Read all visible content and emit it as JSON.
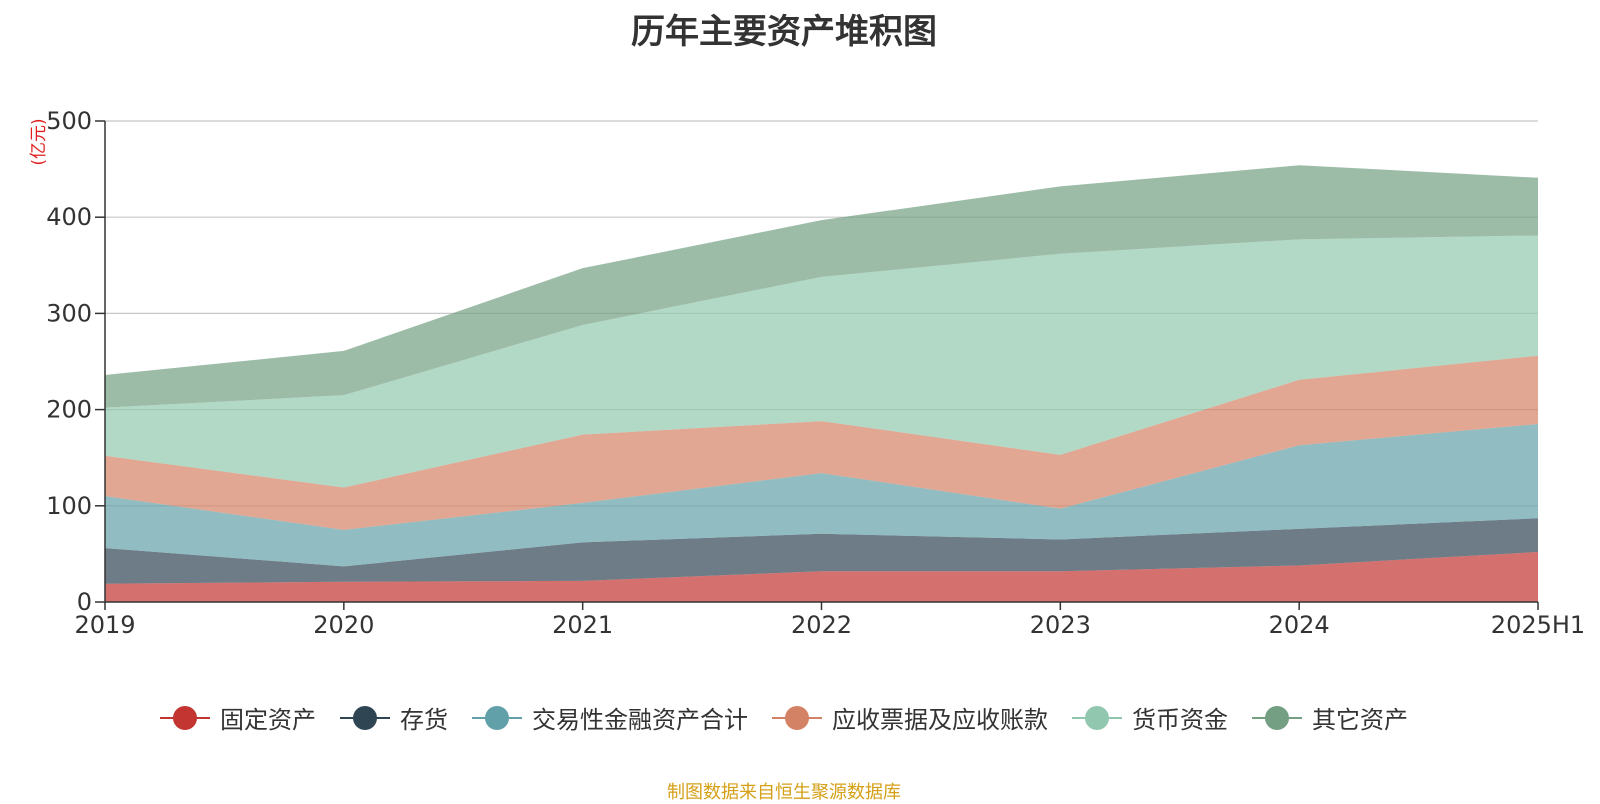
{
  "title": "历年主要资产堆积图",
  "unit_label": "(亿元)",
  "source_note": "制图数据来自恒生聚源数据库",
  "chart_data": {
    "type": "area",
    "stacked": true,
    "title": "历年主要资产堆积图",
    "ylabel": "(亿元)",
    "ylim": [
      0,
      500
    ],
    "yticks": [
      0,
      100,
      200,
      300,
      400,
      500
    ],
    "grid": true,
    "legend_position": "bottom",
    "categories": [
      "2019",
      "2020",
      "2021",
      "2022",
      "2023",
      "2024",
      "2025H1"
    ],
    "series": [
      {
        "name": "固定资产",
        "color": "#c23531",
        "values": [
          19,
          21,
          22,
          32,
          32,
          38,
          52
        ]
      },
      {
        "name": "存货",
        "color": "#2f4554",
        "values": [
          37,
          16,
          40,
          39,
          33,
          38,
          35
        ]
      },
      {
        "name": "交易性金融资产合计",
        "color": "#61a0a8",
        "values": [
          54,
          38,
          41,
          63,
          32,
          87,
          98
        ]
      },
      {
        "name": "应收票据及应收账款",
        "color": "#d48265",
        "values": [
          42,
          44,
          71,
          54,
          56,
          68,
          71
        ]
      },
      {
        "name": "货币资金",
        "color": "#91c7ae",
        "values": [
          50,
          96,
          114,
          150,
          209,
          146,
          125
        ]
      },
      {
        "name": "其它资产",
        "color": "#749f83",
        "values": [
          34,
          46,
          59,
          59,
          70,
          77,
          60
        ]
      }
    ]
  }
}
